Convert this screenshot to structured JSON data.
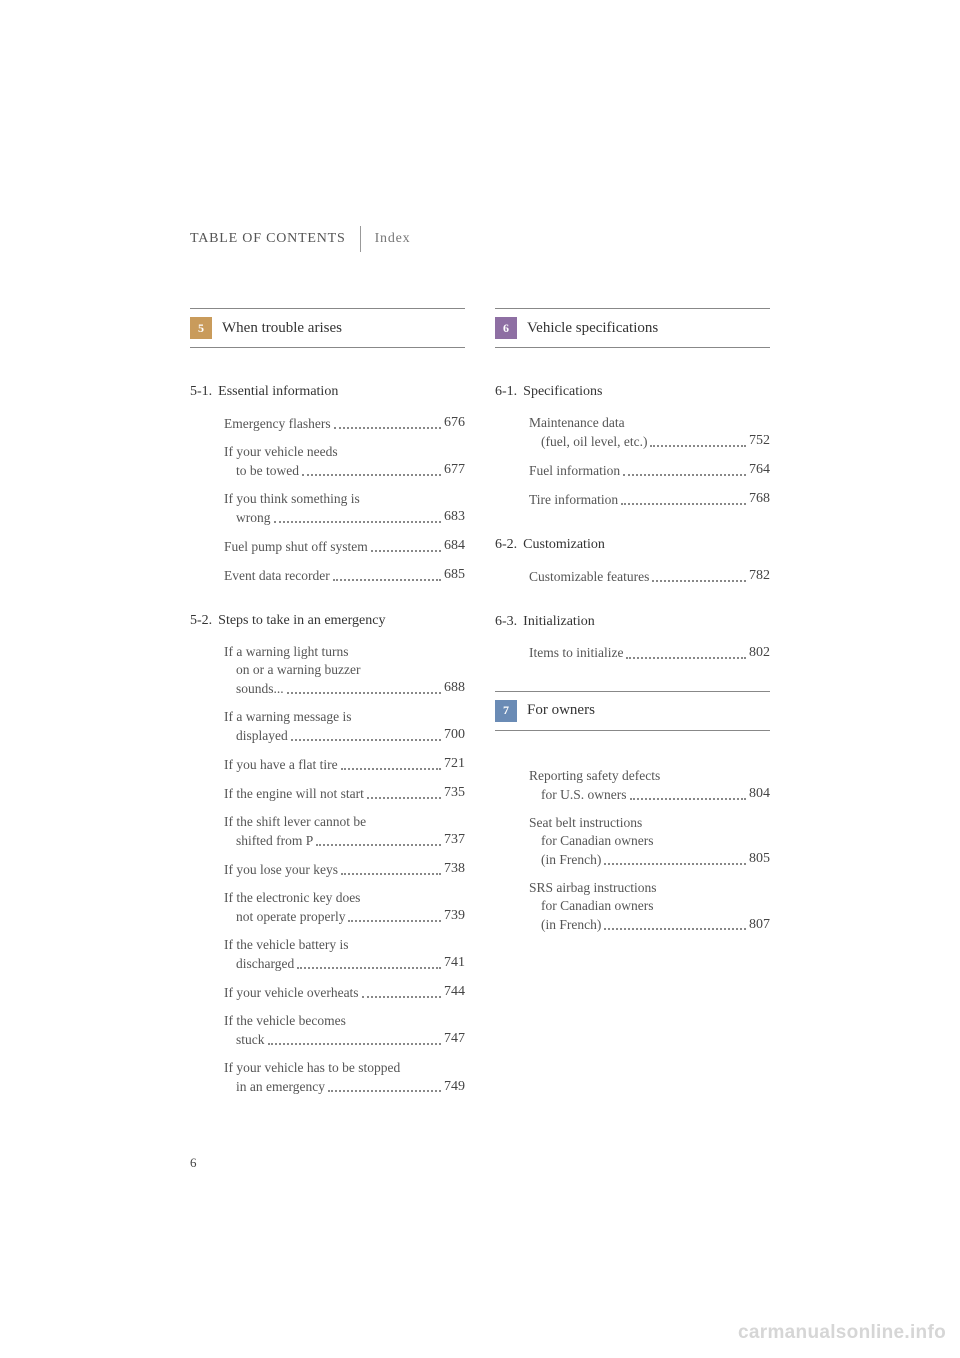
{
  "header": {
    "tabs": [
      "TABLE OF CONTENTS",
      "Index"
    ]
  },
  "page_number": "6",
  "watermark": "carmanualsonline.info",
  "colors": {
    "chapter5": "#c99b5b",
    "chapter6": "#8e6fa3",
    "chapter7": "#6a8bb5"
  },
  "left": {
    "chapter": {
      "num": "5",
      "title": "When trouble arises"
    },
    "sections": [
      {
        "num": "5-1.",
        "title": "Essential information",
        "entries": [
          {
            "lines": [
              "Emergency flashers"
            ],
            "page": "676"
          },
          {
            "lines": [
              "If your vehicle needs",
              "to be towed"
            ],
            "page": "677"
          },
          {
            "lines": [
              "If you think something is",
              "wrong"
            ],
            "page": "683"
          },
          {
            "lines": [
              "Fuel pump shut off system"
            ],
            "page": "684"
          },
          {
            "lines": [
              "Event data recorder"
            ],
            "page": "685"
          }
        ]
      },
      {
        "num": "5-2.",
        "title": "Steps to take in an emergency",
        "entries": [
          {
            "lines": [
              "If a warning light turns",
              "on or a warning buzzer",
              "sounds..."
            ],
            "page": "688"
          },
          {
            "lines": [
              "If a warning message is",
              "displayed"
            ],
            "page": "700"
          },
          {
            "lines": [
              "If you have a flat tire"
            ],
            "page": "721"
          },
          {
            "lines": [
              "If the engine will not start"
            ],
            "page": "735"
          },
          {
            "lines": [
              "If the shift lever cannot be",
              "shifted from P"
            ],
            "page": "737"
          },
          {
            "lines": [
              "If you lose your keys"
            ],
            "page": "738"
          },
          {
            "lines": [
              "If the electronic key does",
              "not operate properly"
            ],
            "page": "739"
          },
          {
            "lines": [
              "If the vehicle battery is",
              "discharged"
            ],
            "page": "741"
          },
          {
            "lines": [
              "If your vehicle overheats"
            ],
            "page": "744"
          },
          {
            "lines": [
              "If the vehicle becomes",
              "stuck"
            ],
            "page": "747"
          },
          {
            "lines": [
              "If your vehicle has to be stopped",
              "in an emergency"
            ],
            "page": "749"
          }
        ]
      }
    ]
  },
  "right": {
    "chapters": [
      {
        "num": "6",
        "title": "Vehicle specifications",
        "sections": [
          {
            "num": "6-1.",
            "title": "Specifications",
            "entries": [
              {
                "lines": [
                  "Maintenance data",
                  "(fuel, oil level, etc.)"
                ],
                "page": "752"
              },
              {
                "lines": [
                  "Fuel information"
                ],
                "page": "764"
              },
              {
                "lines": [
                  "Tire information"
                ],
                "page": "768"
              }
            ]
          },
          {
            "num": "6-2.",
            "title": "Customization",
            "entries": [
              {
                "lines": [
                  "Customizable features"
                ],
                "page": "782"
              }
            ]
          },
          {
            "num": "6-3.",
            "title": "Initialization",
            "entries": [
              {
                "lines": [
                  "Items to initialize"
                ],
                "page": "802"
              }
            ]
          }
        ]
      },
      {
        "num": "7",
        "title": "For owners",
        "sections": [
          {
            "num": "",
            "title": "",
            "entries": [
              {
                "lines": [
                  "Reporting safety defects",
                  "for U.S. owners"
                ],
                "page": "804"
              },
              {
                "lines": [
                  "Seat belt instructions",
                  "for Canadian owners",
                  "(in French)"
                ],
                "page": "805"
              },
              {
                "lines": [
                  "SRS airbag instructions",
                  "for Canadian owners",
                  "(in French)"
                ],
                "page": "807"
              }
            ]
          }
        ]
      }
    ]
  }
}
